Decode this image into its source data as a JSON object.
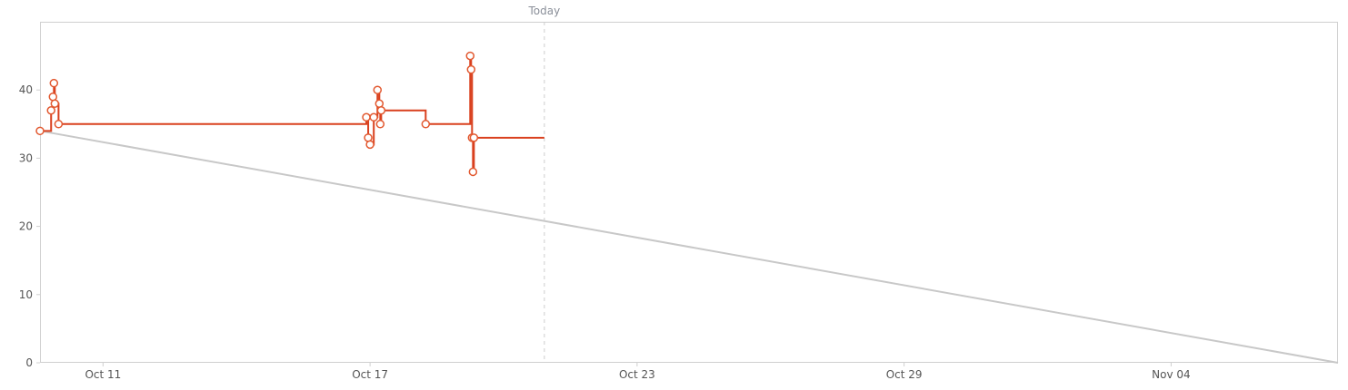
{
  "chart_data": {
    "type": "line",
    "title": "",
    "xlabel": "",
    "ylabel": "",
    "x_axis": {
      "type": "date",
      "min": "2023-10-09T14:00",
      "max": "2023-11-07T18:00",
      "ticks": [
        {
          "date": "2023-10-11",
          "label": "Oct 11"
        },
        {
          "date": "2023-10-17",
          "label": "Oct 17"
        },
        {
          "date": "2023-10-23",
          "label": "Oct 23"
        },
        {
          "date": "2023-10-29",
          "label": "Oct 29"
        },
        {
          "date": "2023-11-04",
          "label": "Nov 04"
        }
      ]
    },
    "y_axis": {
      "min": 0,
      "max": 50,
      "ticks": [
        0,
        10,
        20,
        30,
        40
      ]
    },
    "today_marker": {
      "date": "2023-10-20T22:00",
      "label": "Today"
    },
    "grid": false,
    "legend": "none",
    "series": [
      {
        "role": "ideal",
        "style": "straight",
        "color": "#c8c8c8",
        "points": [
          {
            "x": "2023-10-09T14:00",
            "y": 34
          },
          {
            "x": "2023-11-07T18:00",
            "y": 0
          }
        ]
      },
      {
        "role": "actual",
        "style": "step",
        "color": "#d9401e",
        "end_x": "2023-10-20T22:00",
        "points": [
          {
            "x": "2023-10-09T14:00",
            "y": 34
          },
          {
            "x": "2023-10-09T20:00",
            "y": 37
          },
          {
            "x": "2023-10-09T21:00",
            "y": 39
          },
          {
            "x": "2023-10-09T21:30",
            "y": 41
          },
          {
            "x": "2023-10-09T22:00",
            "y": 38
          },
          {
            "x": "2023-10-10T00:00",
            "y": 35
          },
          {
            "x": "2023-10-16T22:00",
            "y": 36
          },
          {
            "x": "2023-10-16T23:00",
            "y": 33
          },
          {
            "x": "2023-10-17T00:00",
            "y": 32
          },
          {
            "x": "2023-10-17T02:00",
            "y": 36
          },
          {
            "x": "2023-10-17T04:00",
            "y": 40
          },
          {
            "x": "2023-10-17T05:00",
            "y": 38
          },
          {
            "x": "2023-10-17T05:30",
            "y": 35
          },
          {
            "x": "2023-10-17T06:00",
            "y": 37
          },
          {
            "x": "2023-10-18T06:00",
            "y": 35
          },
          {
            "x": "2023-10-19T06:00",
            "y": 45
          },
          {
            "x": "2023-10-19T06:30",
            "y": 43
          },
          {
            "x": "2023-10-19T07:00",
            "y": 33
          },
          {
            "x": "2023-10-19T07:30",
            "y": 28
          },
          {
            "x": "2023-10-19T08:00",
            "y": 33
          }
        ]
      }
    ]
  }
}
